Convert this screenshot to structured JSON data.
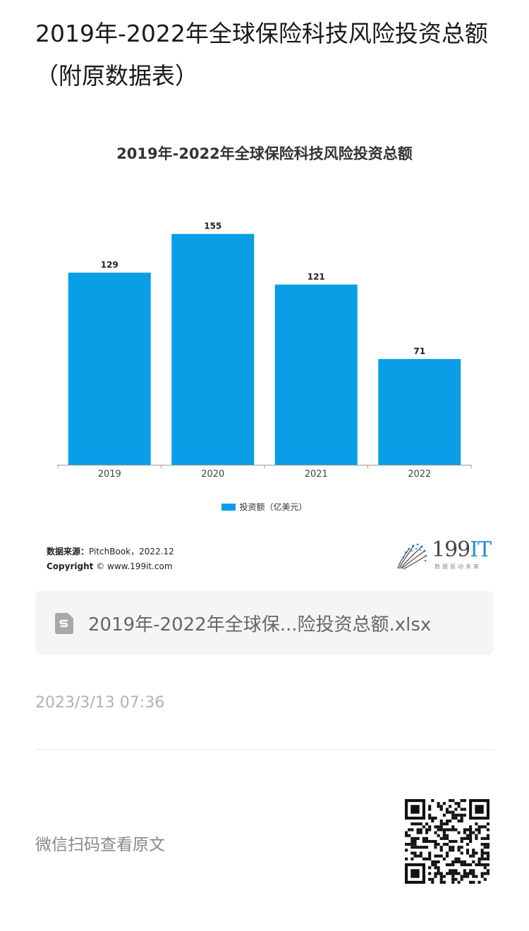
{
  "page_title": "2019年-2022年全球保险科技风险投资总额（附原数据表）",
  "chart_data": {
    "type": "bar",
    "title": "2019年-2022年全球保险科技风险投资总额",
    "categories": [
      "2019",
      "2020",
      "2021",
      "2022"
    ],
    "series": [
      {
        "name": "投资额（亿美元）",
        "values": [
          129,
          155,
          121,
          71
        ]
      }
    ],
    "data_labels": [
      "129",
      "155",
      "121",
      "71"
    ],
    "ylim": [
      0,
      170
    ],
    "grid": false,
    "legend_position": "bottom",
    "bar_color": "#0a9ee6"
  },
  "source": {
    "label": "数据来源：",
    "value": "PitchBook，2022.12",
    "copyright_label": "Copyright",
    "copyright_value": "© www.199it.com"
  },
  "brand": {
    "num": "199",
    "it": "IT",
    "tagline": "数据驱动未来"
  },
  "file": {
    "name": "2019年-2022年全球保...险投资总额.xlsx",
    "icon": "spreadsheet-icon"
  },
  "timestamp": "2023/3/13 07:36",
  "qr_prompt": "微信扫码查看原文"
}
